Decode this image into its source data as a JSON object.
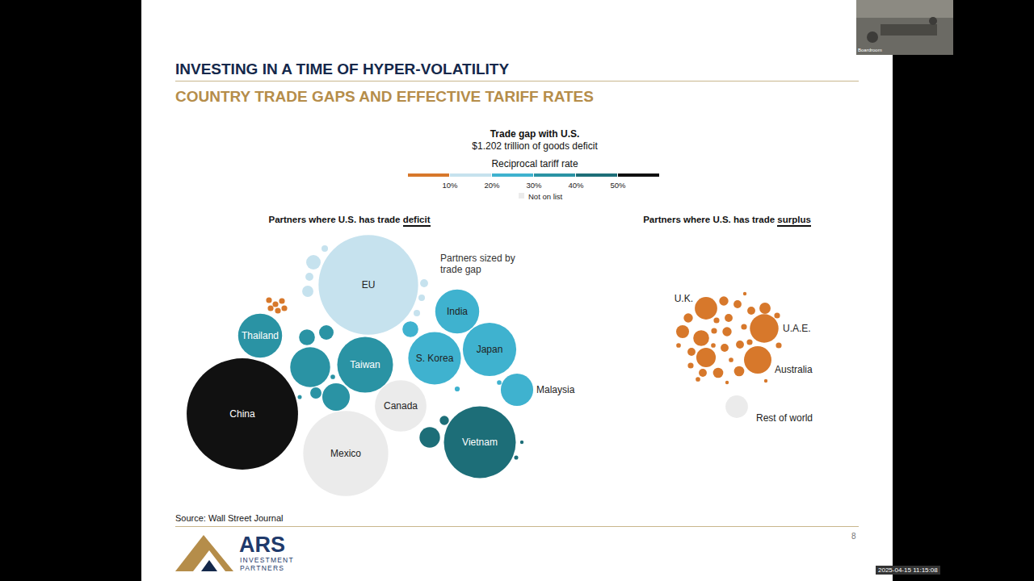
{
  "slide": {
    "title": "INVESTING IN A TIME OF HYPER-VOLATILITY",
    "subtitle": "COUNTRY TRADE GAPS AND EFFECTIVE TARIFF RATES",
    "source": "Source: Wall Street Journal",
    "page": 8,
    "logo": {
      "name": "ARS",
      "line1": "INVESTMENT",
      "line2": "PARTNERS"
    }
  },
  "screen": {
    "webcam_label": "Boardroom",
    "timestamp": "2025-04-15 11:15:08"
  },
  "key": {
    "title": "Trade gap with U.S.",
    "subtitle": "$1.202 trillion of goods deficit",
    "scale_title": "Reciprocal tariff rate",
    "ticks": [
      {
        "value": 10,
        "label": "10%"
      },
      {
        "value": 20,
        "label": "20%"
      },
      {
        "value": 30,
        "label": "30%"
      },
      {
        "value": 40,
        "label": "40%"
      },
      {
        "value": 50,
        "label": "50%"
      }
    ],
    "colors": [
      "#d7782b",
      "#c6e2ee",
      "#3fb2cf",
      "#2a93a4",
      "#1d6e78",
      "#111111"
    ],
    "not_on_list": {
      "label": "Not on list",
      "color": "#ebebeb"
    }
  },
  "chart_data": [
    {
      "type": "bubble",
      "title": "Partners where U.S. has trade deficit",
      "title_emphasis": "deficit",
      "annotation": "Partners sized by trade gap",
      "tick_labels": false,
      "bubbles": [
        {
          "name": "EU",
          "trade_gap": 236,
          "tariff": 20
        },
        {
          "name": "China",
          "trade_gap": 295,
          "tariff": 54
        },
        {
          "name": "Mexico",
          "trade_gap": 172,
          "tariff": null
        },
        {
          "name": "Vietnam",
          "trade_gap": 123,
          "tariff": 46
        },
        {
          "name": "Taiwan",
          "trade_gap": 74,
          "tariff": 32
        },
        {
          "name": "Japan",
          "trade_gap": 68,
          "tariff": 24
        },
        {
          "name": "S. Korea",
          "trade_gap": 66,
          "tariff": 25
        },
        {
          "name": "Canada",
          "trade_gap": 63,
          "tariff": null
        },
        {
          "name": "India",
          "trade_gap": 46,
          "tariff": 26
        },
        {
          "name": "Thailand",
          "trade_gap": 46,
          "tariff": 36
        },
        {
          "name": "Malaysia",
          "trade_gap": 25,
          "tariff": 24
        },
        {
          "name": null,
          "trade_gap": 38,
          "tariff": 31
        },
        {
          "name": null,
          "trade_gap": 18,
          "tariff": 32
        },
        {
          "name": null,
          "trade_gap": 6,
          "tariff": 32
        },
        {
          "name": null,
          "trade_gap": 5,
          "tariff": 37
        },
        {
          "name": null,
          "trade_gap": 3,
          "tariff": 32
        },
        {
          "name": null,
          "trade_gap": 10,
          "tariff": 46
        },
        {
          "name": null,
          "trade_gap": 2,
          "tariff": 46
        },
        {
          "name": null,
          "trade_gap": 0.4,
          "tariff": 46
        },
        {
          "name": null,
          "trade_gap": 0.3,
          "tariff": 46
        },
        {
          "name": null,
          "trade_gap": 6,
          "tariff": 26
        },
        {
          "name": null,
          "trade_gap": 0.6,
          "tariff": 26
        },
        {
          "name": null,
          "trade_gap": 0.5,
          "tariff": 26
        },
        {
          "name": null,
          "trade_gap": 5,
          "tariff": 15
        },
        {
          "name": null,
          "trade_gap": 3,
          "tariff": 15
        },
        {
          "name": null,
          "trade_gap": 1.5,
          "tariff": 15
        },
        {
          "name": null,
          "trade_gap": 1,
          "tariff": 15
        },
        {
          "name": null,
          "trade_gap": 1.5,
          "tariff": 15
        },
        {
          "name": null,
          "trade_gap": 1,
          "tariff": 15
        },
        {
          "name": null,
          "trade_gap": 1,
          "tariff": 15
        },
        {
          "name": null,
          "trade_gap": 0.8,
          "tariff": 10
        },
        {
          "name": null,
          "trade_gap": 0.8,
          "tariff": 10
        },
        {
          "name": null,
          "trade_gap": 0.8,
          "tariff": 10
        },
        {
          "name": null,
          "trade_gap": 0.8,
          "tariff": 10
        },
        {
          "name": null,
          "trade_gap": 0.8,
          "tariff": 10
        },
        {
          "name": null,
          "trade_gap": 0.8,
          "tariff": 10
        },
        {
          "name": null,
          "trade_gap": 0.5,
          "tariff": 32
        },
        {
          "name": null,
          "trade_gap": 0.4,
          "tariff": 32
        }
      ]
    },
    {
      "type": "bubble",
      "title": "Partners where U.S. has trade surplus",
      "title_emphasis": "surplus",
      "tick_labels": false,
      "bubbles": [
        {
          "name": "U.K.",
          "trade_gap": 12,
          "tariff": 10
        },
        {
          "name": "U.A.E.",
          "trade_gap": 19.5,
          "tariff": 10
        },
        {
          "name": "Australia",
          "trade_gap": 17.9,
          "tariff": 10
        },
        {
          "name": "Rest of world",
          "trade_gap": 12,
          "tariff": null
        },
        {
          "name": null,
          "trade_gap": 9,
          "tariff": 10
        },
        {
          "name": null,
          "trade_gap": 6,
          "tariff": 10
        },
        {
          "name": null,
          "trade_gap": 4,
          "tariff": 10
        },
        {
          "name": null,
          "trade_gap": 2,
          "tariff": 10
        },
        {
          "name": null,
          "trade_gap": 1.5,
          "tariff": 10
        },
        {
          "name": null,
          "trade_gap": 2,
          "tariff": 10
        },
        {
          "name": null,
          "trade_gap": 1.5,
          "tariff": 10
        },
        {
          "name": null,
          "trade_gap": 1.5,
          "tariff": 10
        },
        {
          "name": null,
          "trade_gap": 3,
          "tariff": 10
        },
        {
          "name": null,
          "trade_gap": 2.5,
          "tariff": 10
        },
        {
          "name": null,
          "trade_gap": 2.5,
          "tariff": 10
        },
        {
          "name": null,
          "trade_gap": 1.5,
          "tariff": 10
        },
        {
          "name": null,
          "trade_gap": 1.5,
          "tariff": 10
        },
        {
          "name": null,
          "trade_gap": 2,
          "tariff": 10
        },
        {
          "name": null,
          "trade_gap": 0.8,
          "tariff": 10
        },
        {
          "name": null,
          "trade_gap": 0.8,
          "tariff": 10
        },
        {
          "name": null,
          "trade_gap": 0.8,
          "tariff": 10
        },
        {
          "name": null,
          "trade_gap": 1.5,
          "tariff": 10
        },
        {
          "name": null,
          "trade_gap": 1.5,
          "tariff": 10
        },
        {
          "name": null,
          "trade_gap": 0.8,
          "tariff": 10
        },
        {
          "name": null,
          "trade_gap": 0.8,
          "tariff": 10
        },
        {
          "name": null,
          "trade_gap": 0.8,
          "tariff": 10
        },
        {
          "name": null,
          "trade_gap": 0.5,
          "tariff": 10
        },
        {
          "name": null,
          "trade_gap": 0.8,
          "tariff": 10
        },
        {
          "name": null,
          "trade_gap": 0.5,
          "tariff": 10
        },
        {
          "name": null,
          "trade_gap": 0.5,
          "tariff": 10
        },
        {
          "name": null,
          "trade_gap": 0.5,
          "tariff": 10
        },
        {
          "name": null,
          "trade_gap": 0.3,
          "tariff": 10
        },
        {
          "name": null,
          "trade_gap": 0.3,
          "tariff": 10
        },
        {
          "name": null,
          "trade_gap": 0.3,
          "tariff": 10
        }
      ]
    }
  ]
}
